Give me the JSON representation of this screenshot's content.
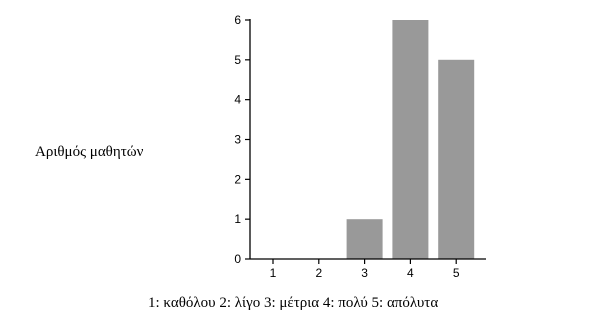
{
  "chart_data": {
    "type": "bar",
    "categories": [
      "1",
      "2",
      "3",
      "4",
      "5"
    ],
    "values": [
      0,
      0,
      1,
      6,
      5
    ],
    "ylabel": "Αριθμός μαθητών",
    "xlabel": "1: καθόλου 2: λίγο 3: μέτρια 4: πολύ 5: απόλυτα",
    "ylim": [
      0,
      6
    ],
    "yticks": [
      "0",
      "1",
      "2",
      "3",
      "4",
      "5",
      "6"
    ],
    "grid": false,
    "bar_color": "#999999",
    "axis_color": "#000000"
  }
}
